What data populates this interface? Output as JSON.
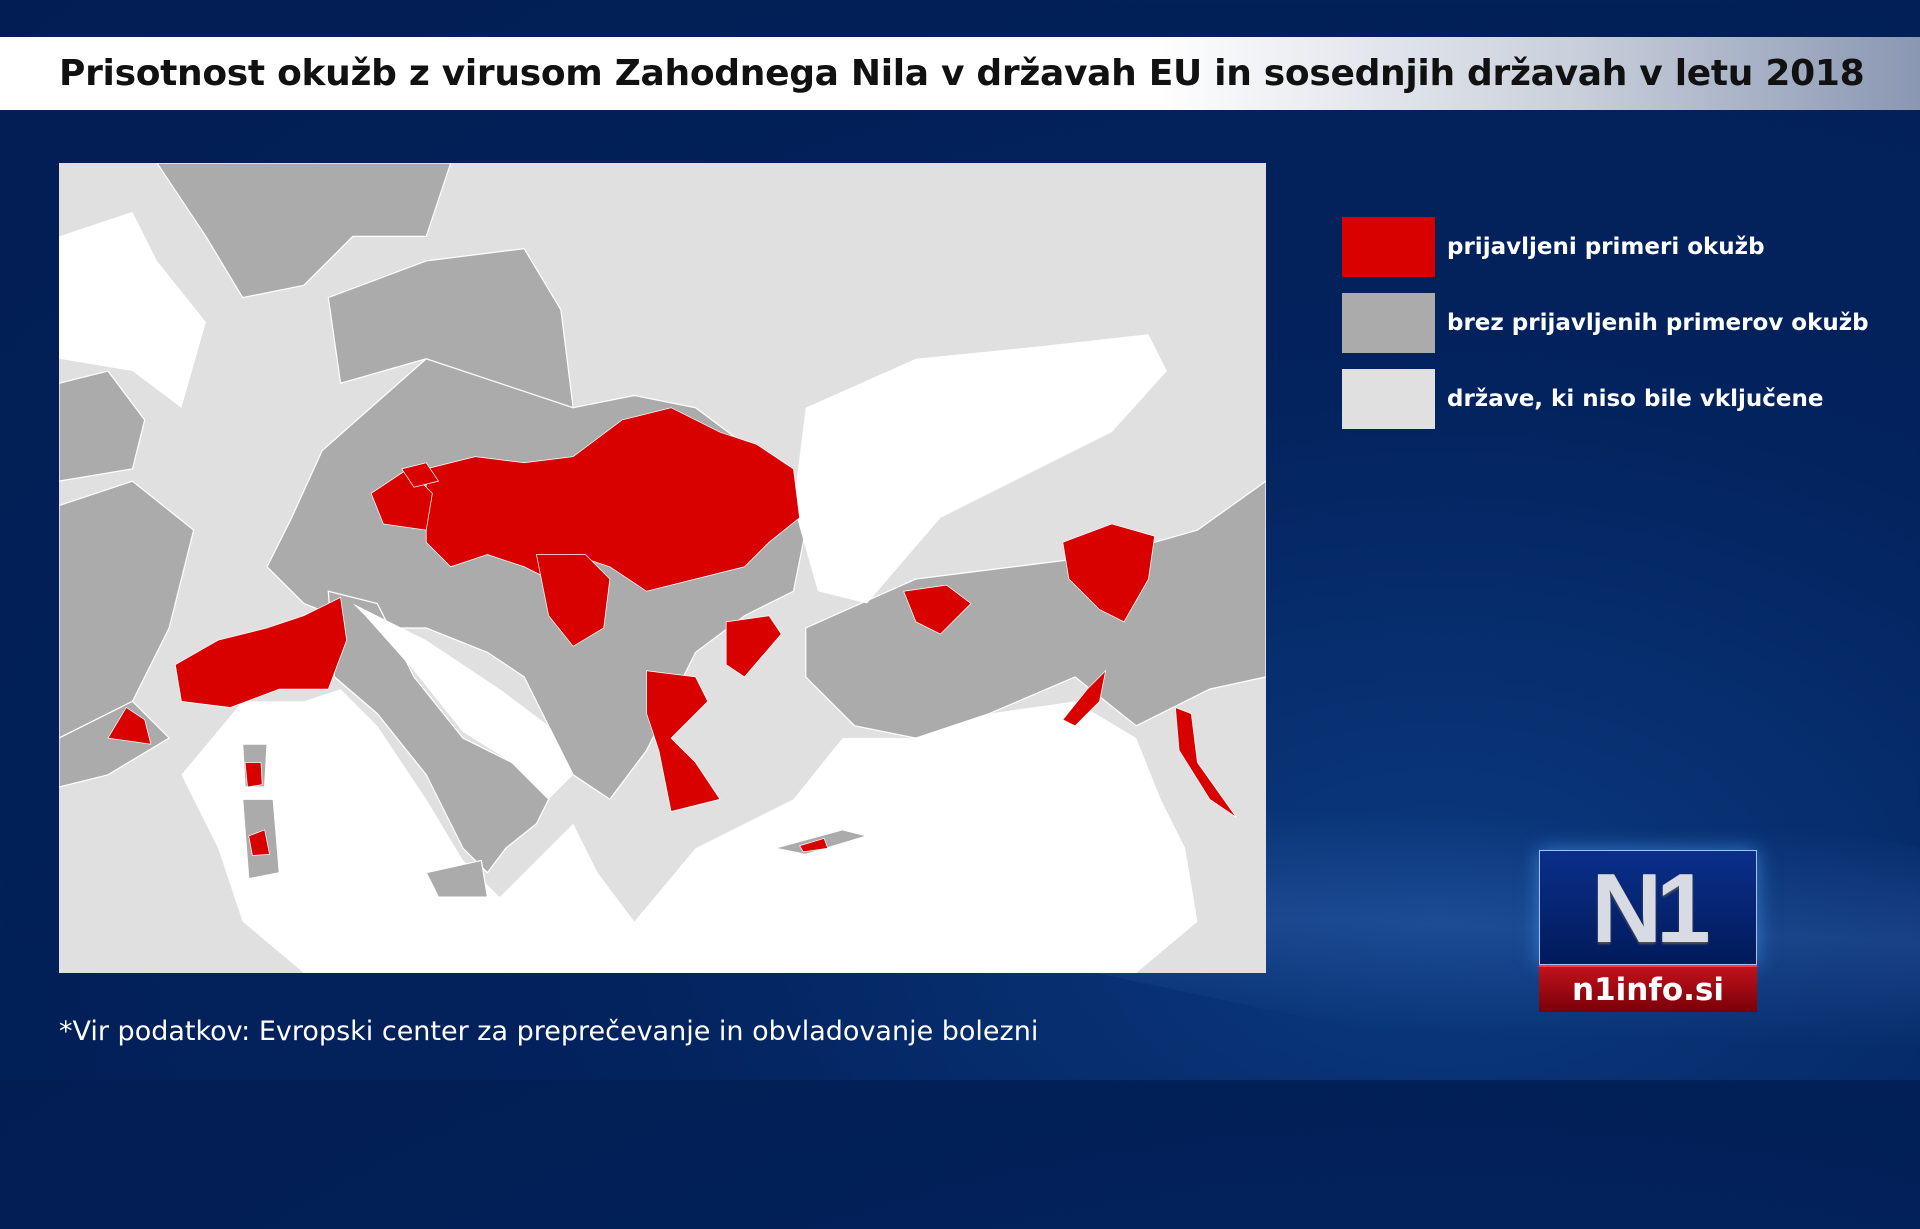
{
  "title": "Prisotnost okužb z virusom Zahodnega Nila v državah EU in sosednjih državah v letu 2018",
  "legend": [
    {
      "label": "prijavljeni primeri okužb",
      "color": "#d90000"
    },
    {
      "label": "brez prijavljenih primerov okužb",
      "color": "#ababab"
    },
    {
      "label": "države, ki niso bile vključene",
      "color": "#e0e0e0"
    }
  ],
  "map": {
    "sea_color": "#ffffff",
    "reported_color": "#d90000",
    "no_cases_color": "#ababab",
    "not_included_color": "#e0e0e0"
  },
  "source": "*Vir podatkov: Evropski center za preprečevanje in obvladovanje bolezni",
  "logo": {
    "mark": "N1",
    "site": "n1info.si"
  }
}
